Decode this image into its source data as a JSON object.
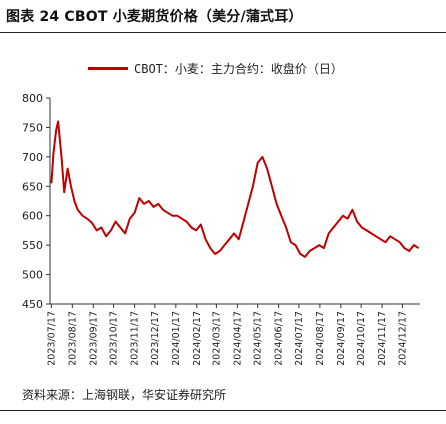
{
  "figure_title": "图表 24 CBOT 小麦期货价格（美分/蒲式耳）",
  "source": "资料来源：上海钢联，华安证券研究所",
  "chart_data": {
    "type": "line",
    "title": "",
    "xlabel": "",
    "ylabel": "",
    "ylim": [
      450,
      800
    ],
    "yticks": [
      450,
      500,
      550,
      600,
      650,
      700,
      750,
      800
    ],
    "grid": false,
    "legend_placement": "top-left",
    "x_tick_labels": [
      "2023/07/17",
      "2023/08/17",
      "2023/09/17",
      "2023/10/17",
      "2023/11/17",
      "2023/12/17",
      "2024/01/17",
      "2024/02/17",
      "2024/03/17",
      "2024/04/17",
      "2024/05/17",
      "2024/06/17",
      "2024/07/17",
      "2024/08/17",
      "2024/09/17",
      "2024/10/17",
      "2024/11/17",
      "2024/12/17"
    ],
    "series": [
      {
        "name": "CBOT：小麦：主力合约：收盘价（日）",
        "color": "#c00000",
        "x": [
          "2023/07/17",
          "2023/07/20",
          "2023/07/24",
          "2023/07/27",
          "2023/08/01",
          "2023/08/05",
          "2023/08/10",
          "2023/08/15",
          "2023/08/20",
          "2023/08/25",
          "2023/09/01",
          "2023/09/08",
          "2023/09/15",
          "2023/09/22",
          "2023/09/29",
          "2023/10/06",
          "2023/10/13",
          "2023/10/20",
          "2023/10/27",
          "2023/11/03",
          "2023/11/10",
          "2023/11/17",
          "2023/11/24",
          "2023/12/01",
          "2023/12/08",
          "2023/12/15",
          "2023/12/22",
          "2023/12/29",
          "2024/01/05",
          "2024/01/12",
          "2024/01/19",
          "2024/01/26",
          "2024/02/02",
          "2024/02/09",
          "2024/02/16",
          "2024/02/23",
          "2024/03/01",
          "2024/03/08",
          "2024/03/15",
          "2024/03/22",
          "2024/03/29",
          "2024/04/05",
          "2024/04/12",
          "2024/04/19",
          "2024/04/26",
          "2024/05/03",
          "2024/05/10",
          "2024/05/17",
          "2024/05/24",
          "2024/05/31",
          "2024/06/07",
          "2024/06/14",
          "2024/06/21",
          "2024/06/28",
          "2024/07/05",
          "2024/07/12",
          "2024/07/19",
          "2024/07/26",
          "2024/08/02",
          "2024/08/09",
          "2024/08/16",
          "2024/08/23",
          "2024/08/30",
          "2024/09/06",
          "2024/09/13",
          "2024/09/20",
          "2024/09/27",
          "2024/10/04",
          "2024/10/11",
          "2024/10/18",
          "2024/10/25",
          "2024/11/01",
          "2024/11/08",
          "2024/11/15",
          "2024/11/22",
          "2024/11/29",
          "2024/12/06",
          "2024/12/13",
          "2024/12/20",
          "2024/12/27",
          "2025/01/03",
          "2025/01/10"
        ],
        "values": [
          655,
          705,
          745,
          760,
          700,
          640,
          680,
          650,
          625,
          610,
          600,
          595,
          588,
          575,
          580,
          565,
          575,
          590,
          580,
          570,
          595,
          605,
          630,
          620,
          625,
          615,
          620,
          610,
          605,
          600,
          600,
          595,
          590,
          580,
          575,
          585,
          560,
          545,
          535,
          540,
          550,
          560,
          570,
          560,
          590,
          620,
          650,
          690,
          700,
          680,
          650,
          620,
          600,
          580,
          555,
          550,
          535,
          530,
          540,
          545,
          550,
          545,
          570,
          580,
          590,
          600,
          595,
          610,
          590,
          580,
          575,
          570,
          565,
          560,
          555,
          565,
          560,
          555,
          545,
          540,
          550,
          545
        ]
      }
    ]
  }
}
